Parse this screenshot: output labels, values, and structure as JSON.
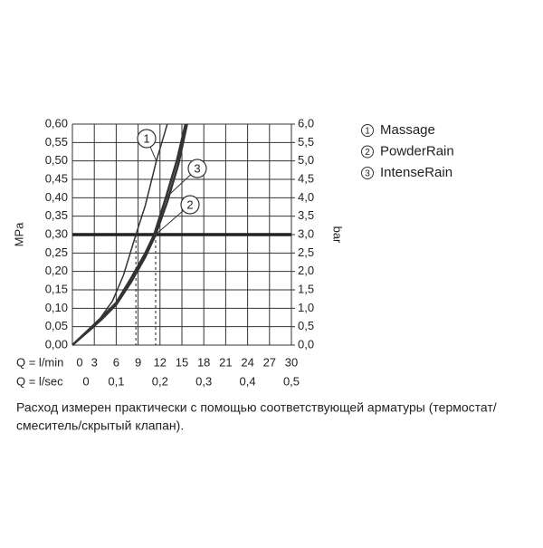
{
  "chart_data": {
    "type": "line",
    "y_label": "MPa",
    "y2_label": "bar",
    "x_label": "Q = l/min",
    "x2_label": "Q = l/sec",
    "xlim": [
      0,
      30
    ],
    "xticks": [
      0,
      3,
      6,
      9,
      12,
      15,
      18,
      21,
      24,
      27,
      30
    ],
    "x2lim": [
      0,
      0.5
    ],
    "x2ticks": [
      0,
      {
        "value": 0.1,
        "label": "0,1"
      },
      {
        "value": 0.2,
        "label": "0,2"
      },
      {
        "value": 0.3,
        "label": "0,3"
      },
      {
        "value": 0.4,
        "label": "0,4"
      },
      {
        "value": 0.5,
        "label": "0,5"
      }
    ],
    "ylim": [
      0,
      0.6
    ],
    "yticks": [
      {
        "value": 0,
        "label": "0,00"
      },
      {
        "value": 0.05,
        "label": "0,05"
      },
      {
        "value": 0.1,
        "label": "0,10"
      },
      {
        "value": 0.15,
        "label": "0,15"
      },
      {
        "value": 0.2,
        "label": "0,20"
      },
      {
        "value": 0.25,
        "label": "0,25"
      },
      {
        "value": 0.3,
        "label": "0,30"
      },
      {
        "value": 0.35,
        "label": "0,35"
      },
      {
        "value": 0.4,
        "label": "0,40"
      },
      {
        "value": 0.45,
        "label": "0,45"
      },
      {
        "value": 0.5,
        "label": "0,50"
      },
      {
        "value": 0.55,
        "label": "0,55"
      },
      {
        "value": 0.6,
        "label": "0,60"
      }
    ],
    "y2lim": [
      0,
      6
    ],
    "y2ticks": [
      {
        "value": 0,
        "label": "0,0"
      },
      {
        "value": 0.5,
        "label": "0,5"
      },
      {
        "value": 1,
        "label": "1,0"
      },
      {
        "value": 1.5,
        "label": "1,5"
      },
      {
        "value": 2,
        "label": "2,0"
      },
      {
        "value": 2.5,
        "label": "2,5"
      },
      {
        "value": 3,
        "label": "3,0"
      },
      {
        "value": 3.5,
        "label": "3,5"
      },
      {
        "value": 4,
        "label": "4,0"
      },
      {
        "value": 4.5,
        "label": "4,5"
      },
      {
        "value": 5,
        "label": "5,0"
      },
      {
        "value": 5.5,
        "label": "5,5"
      },
      {
        "value": 6,
        "label": "6,0"
      }
    ],
    "grid": true,
    "reference_y": 0.3,
    "series": [
      {
        "name": "Massage",
        "label": "1",
        "color": "#333333",
        "width": 1.5,
        "x": [
          0,
          3,
          5.5,
          7,
          8.7,
          10,
          11.5,
          13
        ],
        "values": [
          0,
          0.05,
          0.12,
          0.19,
          0.3,
          0.38,
          0.5,
          0.6
        ]
      },
      {
        "name": "PowderRain",
        "label": "2",
        "color": "#333333",
        "width": 2.5,
        "x": [
          0,
          4,
          6,
          8,
          10,
          11.4,
          13,
          14.5,
          15.7
        ],
        "values": [
          0,
          0.07,
          0.11,
          0.17,
          0.24,
          0.3,
          0.39,
          0.49,
          0.6
        ]
      },
      {
        "name": "IntenseRain",
        "label": "3",
        "color": "#333333",
        "width": 2.5,
        "x": [
          0,
          4,
          6,
          8,
          10,
          11.2,
          12.8,
          14.3,
          15.5
        ],
        "values": [
          0,
          0.075,
          0.115,
          0.18,
          0.25,
          0.3,
          0.4,
          0.5,
          0.6
        ]
      }
    ],
    "guides_x": [
      8.7,
      11.4
    ],
    "note": [
      "Расход измерен практически с помощью соответствующей арматуры (термостат/",
      "смеситель/скрытый клапан)."
    ]
  }
}
